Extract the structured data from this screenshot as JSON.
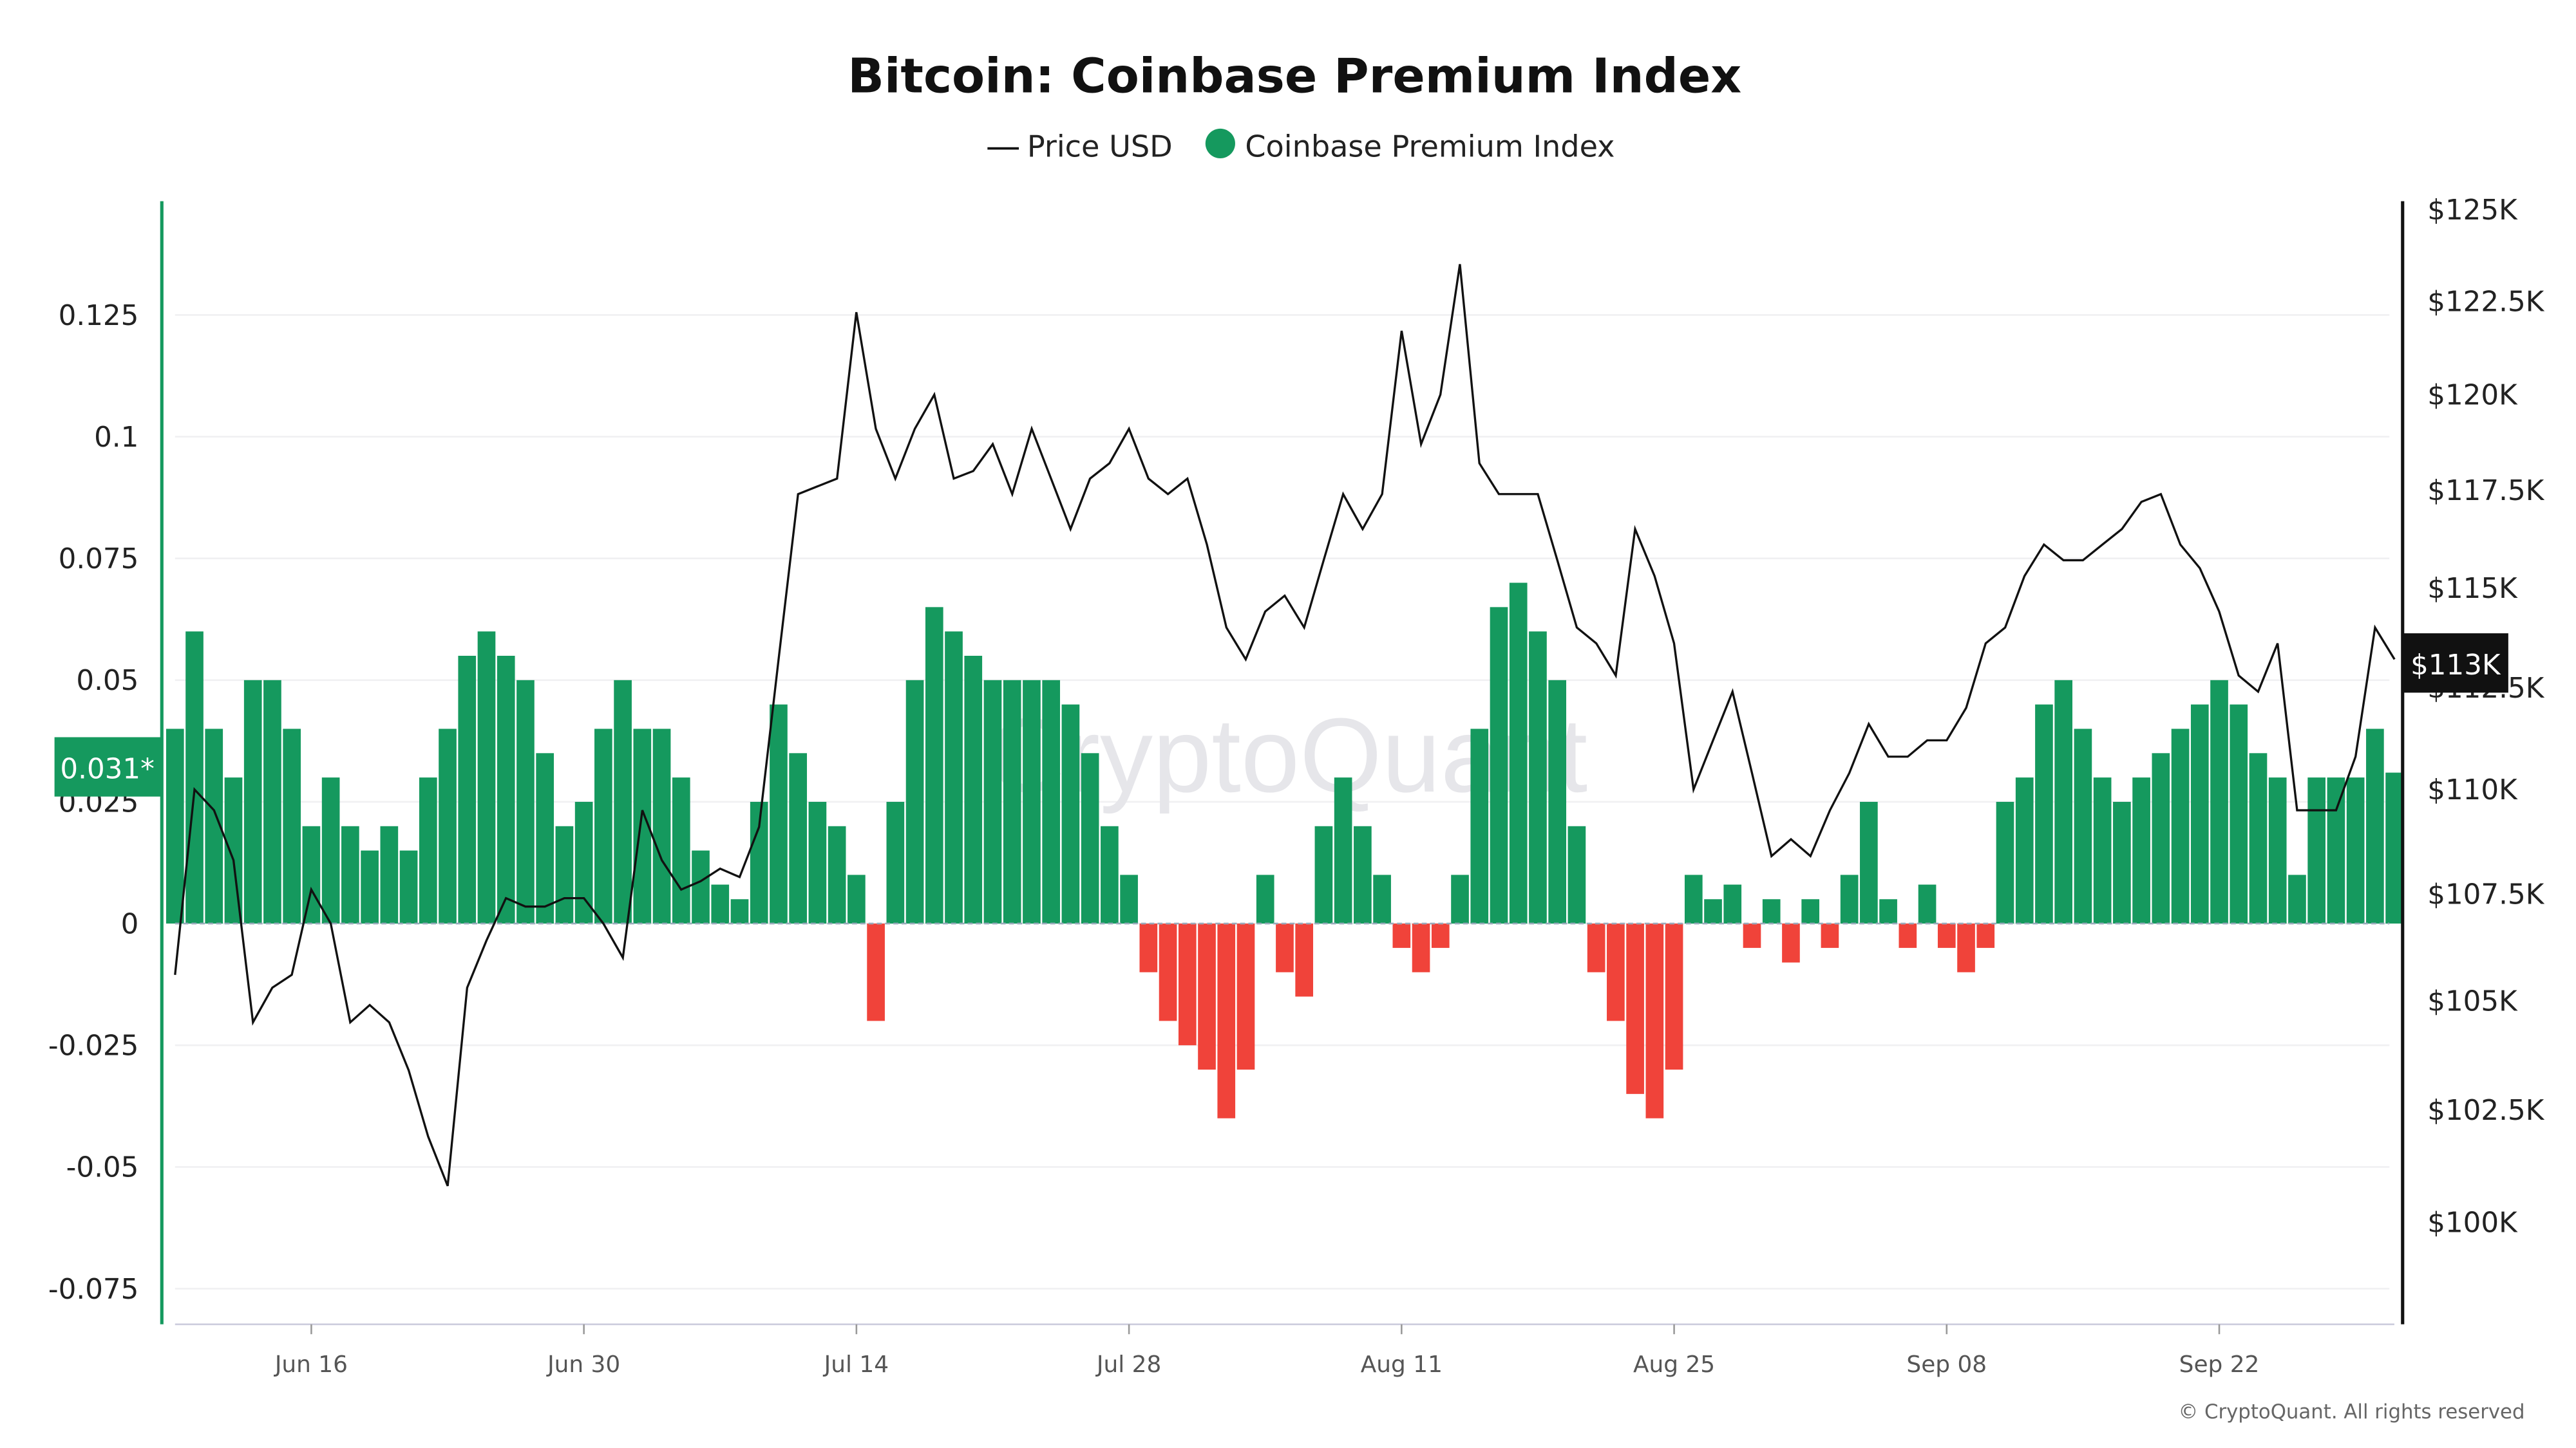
{
  "chart_data": {
    "type": "bar+line",
    "title": "Bitcoin: Coinbase Premium Index",
    "legend": {
      "placement": "top-center",
      "items": [
        {
          "label": "Price USD",
          "marker": "line",
          "color": "#111111"
        },
        {
          "label": "Coinbase Premium Index",
          "marker": "circle",
          "color": "#15995e"
        }
      ]
    },
    "x_ticks": [
      "Jun 16",
      "Jun 30",
      "Jul 14",
      "Jul 28",
      "Aug 11",
      "Aug 25",
      "Sep 08",
      "Sep 22"
    ],
    "left_axis": {
      "ticks": [
        0.125,
        0.1,
        0.075,
        0.05,
        0.025,
        0,
        -0.025,
        -0.05,
        -0.075
      ],
      "tick_labels": [
        "0.125",
        "0.1",
        "0.075",
        "0.05",
        "0.025",
        "0",
        "-0.025",
        "-0.05",
        "-0.075"
      ],
      "range": [
        -0.082,
        0.148
      ]
    },
    "right_axis": {
      "scale": "log",
      "ticks": [
        125,
        122.5,
        120,
        117.5,
        115,
        112.5,
        110,
        107.5,
        105,
        102.5,
        100
      ],
      "tick_labels": [
        "$125K",
        "$122.5K",
        "$120K",
        "$117.5K",
        "$115K",
        "$112.5K",
        "$110K",
        "$107.5K",
        "$105K",
        "$102.5K",
        "$100K"
      ],
      "unit": "thousand USD"
    },
    "current_values": {
      "premium": "0.031*",
      "price": "$113K"
    },
    "grid": true,
    "colors": {
      "positive": "#15995e",
      "negative": "#f0433a",
      "price": "#111111"
    },
    "dates": [
      "Jun 09",
      "Jun 10",
      "Jun 11",
      "Jun 12",
      "Jun 13",
      "Jun 14",
      "Jun 15",
      "Jun 16",
      "Jun 17",
      "Jun 18",
      "Jun 19",
      "Jun 20",
      "Jun 21",
      "Jun 22",
      "Jun 23",
      "Jun 24",
      "Jun 25",
      "Jun 26",
      "Jun 27",
      "Jun 28",
      "Jun 29",
      "Jun 30",
      "Jul 01",
      "Jul 02",
      "Jul 03",
      "Jul 04",
      "Jul 05",
      "Jul 06",
      "Jul 07",
      "Jul 08",
      "Jul 09",
      "Jul 10",
      "Jul 11",
      "Jul 12",
      "Jul 13",
      "Jul 14",
      "Jul 15",
      "Jul 16",
      "Jul 17",
      "Jul 18",
      "Jul 19",
      "Jul 20",
      "Jul 21",
      "Jul 22",
      "Jul 23",
      "Jul 24",
      "Jul 25",
      "Jul 26",
      "Jul 27",
      "Jul 28",
      "Jul 29",
      "Jul 30",
      "Jul 31",
      "Aug 01",
      "Aug 02",
      "Aug 03",
      "Aug 04",
      "Aug 05",
      "Aug 06",
      "Aug 07",
      "Aug 08",
      "Aug 09",
      "Aug 10",
      "Aug 11",
      "Aug 12",
      "Aug 13",
      "Aug 14",
      "Aug 15",
      "Aug 16",
      "Aug 17",
      "Aug 18",
      "Aug 19",
      "Aug 20",
      "Aug 21",
      "Aug 22",
      "Aug 23",
      "Aug 24",
      "Aug 25",
      "Aug 26",
      "Aug 27",
      "Aug 28",
      "Aug 29",
      "Aug 30",
      "Aug 31",
      "Sep 01",
      "Sep 02",
      "Sep 03",
      "Sep 04",
      "Sep 05",
      "Sep 06",
      "Sep 07",
      "Sep 08",
      "Sep 09",
      "Sep 10",
      "Sep 11",
      "Sep 12",
      "Sep 13",
      "Sep 14",
      "Sep 15",
      "Sep 16",
      "Sep 17",
      "Sep 18",
      "Sep 19",
      "Sep 20",
      "Sep 21",
      "Sep 22",
      "Sep 23",
      "Sep 24",
      "Sep 25",
      "Sep 26",
      "Sep 27",
      "Sep 28",
      "Sep 29",
      "Sep 30",
      "Oct 01"
    ],
    "series": [
      {
        "name": "Price USD",
        "axis": "right",
        "type": "line",
        "values": [
          105.6,
          110,
          109.5,
          108.3,
          104.5,
          105.3,
          105.6,
          107.6,
          106.8,
          104.5,
          104.9,
          104.5,
          103.4,
          101.9,
          100.8,
          105.3,
          106.4,
          107.4,
          107.2,
          107.2,
          107.4,
          107.4,
          106.8,
          106.0,
          109.5,
          108.3,
          107.6,
          107.8,
          108.1,
          107.9,
          109.1,
          113.2,
          117.4,
          117.6,
          117.8,
          122.2,
          119.1,
          117.8,
          119.1,
          120.0,
          117.8,
          118.0,
          118.7,
          117.4,
          119.1,
          117.8,
          116.5,
          117.8,
          118.2,
          119.1,
          117.8,
          117.4,
          117.8,
          116.1,
          114.0,
          113.2,
          114.4,
          114.8,
          114.0,
          115.7,
          117.4,
          116.5,
          117.4,
          121.7,
          118.7,
          120.0,
          123.5,
          118.2,
          117.4,
          117.4,
          117.4,
          115.7,
          114.0,
          113.6,
          112.8,
          116.5,
          115.3,
          113.6,
          110.0,
          111.2,
          112.4,
          110.4,
          108.4,
          108.8,
          108.4,
          109.5,
          110.4,
          111.6,
          110.8,
          110.8,
          111.2,
          111.2,
          112.0,
          113.6,
          114.0,
          115.3,
          116.1,
          115.7,
          115.7,
          116.1,
          116.5,
          117.2,
          117.4,
          116.1,
          115.5,
          114.4,
          112.8,
          112.4,
          113.6,
          109.5,
          109.5,
          109.5,
          110.8,
          114.0,
          113.2
        ]
      },
      {
        "name": "Coinbase Premium Index",
        "axis": "left",
        "type": "bar",
        "values": [
          0.04,
          0.06,
          0.04,
          0.03,
          0.05,
          0.05,
          0.04,
          0.02,
          0.03,
          0.02,
          0.015,
          0.02,
          0.015,
          0.03,
          0.04,
          0.055,
          0.06,
          0.055,
          0.05,
          0.035,
          0.02,
          0.025,
          0.04,
          0.05,
          0.04,
          0.04,
          0.03,
          0.015,
          0.008,
          0.005,
          0.025,
          0.045,
          0.035,
          0.025,
          0.02,
          0.01,
          -0.02,
          0.025,
          0.05,
          0.065,
          0.06,
          0.055,
          0.05,
          0.05,
          0.05,
          0.05,
          0.045,
          0.035,
          0.02,
          0.01,
          -0.01,
          -0.02,
          -0.025,
          -0.03,
          -0.04,
          -0.03,
          0.01,
          -0.01,
          -0.015,
          0.02,
          0.03,
          0.02,
          0.01,
          -0.005,
          -0.01,
          -0.005,
          0.01,
          0.04,
          0.065,
          0.07,
          0.06,
          0.05,
          0.02,
          -0.01,
          -0.02,
          -0.035,
          -0.04,
          -0.03,
          0.01,
          0.005,
          0.008,
          -0.005,
          0.005,
          -0.008,
          0.005,
          -0.005,
          0.01,
          0.025,
          0.005,
          -0.005,
          0.008,
          -0.005,
          -0.01,
          -0.005,
          0.025,
          0.03,
          0.045,
          0.05,
          0.04,
          0.03,
          0.025,
          0.03,
          0.035,
          0.04,
          0.045,
          0.05,
          0.045,
          0.035,
          0.03,
          0.01,
          0.03,
          0.03,
          0.03,
          0.04,
          0.031
        ]
      }
    ]
  },
  "watermark": "CryptoQuant",
  "copyright": "© CryptoQuant. All rights reserved"
}
